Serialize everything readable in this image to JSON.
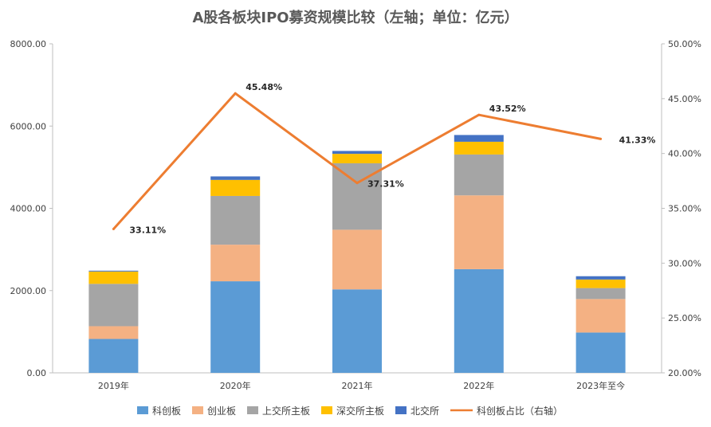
{
  "chart_data": {
    "type": "bar",
    "stacked": true,
    "title": "A股各板块IPO募资规模比较（左轴；单位：亿元）",
    "categories": [
      "2019年",
      "2020年",
      "2021年",
      "2022年",
      "2023年至今"
    ],
    "series": [
      {
        "name": "科创板",
        "color": "#5b9bd5",
        "values": [
          824,
          2226,
          2029,
          2520,
          980
        ]
      },
      {
        "name": "创业板",
        "color": "#f4b183",
        "values": [
          310,
          890,
          1450,
          1795,
          815
        ]
      },
      {
        "name": "上交所主板",
        "color": "#a5a5a5",
        "values": [
          1030,
          1185,
          1616,
          994,
          266
        ]
      },
      {
        "name": "深交所主板",
        "color": "#ffc000",
        "values": [
          300,
          390,
          230,
          310,
          208
        ]
      },
      {
        "name": "北交所",
        "color": "#4472c4",
        "values": [
          20,
          85,
          70,
          164,
          80
        ]
      }
    ],
    "line_series": {
      "name": "科创板占比（右轴）",
      "color": "#ed7d31",
      "axis": "right",
      "values": [
        33.11,
        45.48,
        37.31,
        43.52,
        41.33
      ],
      "labels": [
        "33.11%",
        "45.48%",
        "37.31%",
        "43.52%",
        "41.33%"
      ]
    },
    "y_left": {
      "min": 0,
      "max": 8000,
      "ticks": [
        0,
        2000,
        4000,
        6000,
        8000
      ],
      "tick_labels": [
        "0.00",
        "2000.00",
        "4000.00",
        "6000.00",
        "8000.00"
      ]
    },
    "y_right": {
      "min": 20,
      "max": 50,
      "ticks": [
        20,
        25,
        30,
        35,
        40,
        45,
        50
      ],
      "tick_labels": [
        "20.00%",
        "25.00%",
        "30.00%",
        "35.00%",
        "40.00%",
        "45.00%",
        "50.00%"
      ]
    },
    "grid": false,
    "legend_position": "bottom"
  }
}
